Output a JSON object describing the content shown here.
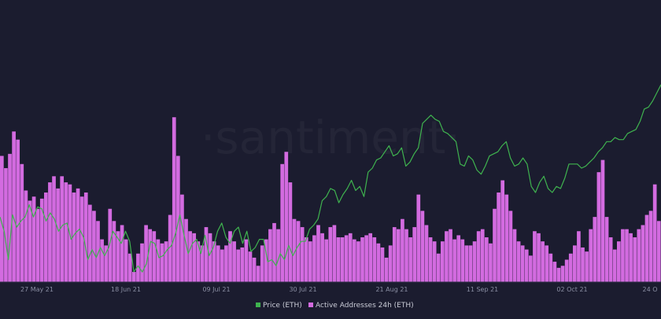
{
  "watermark": "·santiment·",
  "chart_data": {
    "type": "bar+line",
    "x_ticks": [
      "27 May 21",
      "18 Jun 21",
      "09 Jul 21",
      "30 Jul 21",
      "21 Aug 21",
      "11 Sep 21",
      "02 Oct 21",
      "24 O"
    ],
    "legend": [
      {
        "label": "Price (ETH)",
        "color": "#3fb34f"
      },
      {
        "label": "Active Addresses 24h (ETH)",
        "color": "#d36be0"
      }
    ],
    "series": [
      {
        "name": "Active Addresses 24h (ETH)",
        "kind": "bar",
        "color": "#d36be0",
        "relative_values": [
          0.62,
          0.56,
          0.63,
          0.74,
          0.7,
          0.58,
          0.45,
          0.4,
          0.42,
          0.36,
          0.41,
          0.44,
          0.49,
          0.52,
          0.46,
          0.52,
          0.49,
          0.48,
          0.44,
          0.46,
          0.42,
          0.44,
          0.38,
          0.35,
          0.3,
          0.21,
          0.18,
          0.36,
          0.3,
          0.25,
          0.28,
          0.21,
          0.14,
          0.05,
          0.14,
          0.19,
          0.28,
          0.26,
          0.25,
          0.21,
          0.19,
          0.2,
          0.33,
          0.81,
          0.62,
          0.43,
          0.31,
          0.25,
          0.24,
          0.2,
          0.18,
          0.27,
          0.24,
          0.2,
          0.18,
          0.16,
          0.18,
          0.25,
          0.2,
          0.16,
          0.17,
          0.21,
          0.15,
          0.12,
          0.08,
          0.18,
          0.21,
          0.26,
          0.29,
          0.26,
          0.58,
          0.64,
          0.49,
          0.31,
          0.3,
          0.27,
          0.22,
          0.2,
          0.23,
          0.28,
          0.24,
          0.21,
          0.27,
          0.28,
          0.22,
          0.22,
          0.23,
          0.24,
          0.21,
          0.2,
          0.22,
          0.23,
          0.24,
          0.22,
          0.19,
          0.17,
          0.12,
          0.18,
          0.27,
          0.26,
          0.31,
          0.26,
          0.22,
          0.27,
          0.43,
          0.35,
          0.28,
          0.22,
          0.2,
          0.14,
          0.2,
          0.25,
          0.26,
          0.21,
          0.23,
          0.21,
          0.18,
          0.18,
          0.2,
          0.25,
          0.26,
          0.22,
          0.19,
          0.36,
          0.44,
          0.5,
          0.43,
          0.35,
          0.26,
          0.2,
          0.18,
          0.16,
          0.13,
          0.25,
          0.24,
          0.2,
          0.18,
          0.14,
          0.1,
          0.07,
          0.08,
          0.11,
          0.14,
          0.18,
          0.25,
          0.17,
          0.15,
          0.26,
          0.32,
          0.54,
          0.6,
          0.32,
          0.22,
          0.16,
          0.2,
          0.26,
          0.26,
          0.24,
          0.22,
          0.26,
          0.28,
          0.33,
          0.35,
          0.48,
          0.3
        ],
        "value_range": [
          0,
          1
        ]
      },
      {
        "name": "Price (ETH)",
        "kind": "line",
        "color": "#3fb34f",
        "relative_values": [
          0.32,
          0.25,
          0.11,
          0.33,
          0.27,
          0.3,
          0.32,
          0.38,
          0.32,
          0.37,
          0.36,
          0.3,
          0.34,
          0.31,
          0.25,
          0.28,
          0.29,
          0.21,
          0.24,
          0.26,
          0.22,
          0.11,
          0.16,
          0.12,
          0.17,
          0.13,
          0.17,
          0.25,
          0.22,
          0.19,
          0.25,
          0.2,
          0.05,
          0.08,
          0.05,
          0.09,
          0.2,
          0.19,
          0.12,
          0.13,
          0.16,
          0.18,
          0.24,
          0.33,
          0.23,
          0.14,
          0.19,
          0.21,
          0.14,
          0.23,
          0.13,
          0.17,
          0.25,
          0.29,
          0.22,
          0.19,
          0.25,
          0.27,
          0.19,
          0.25,
          0.15,
          0.17,
          0.21,
          0.21,
          0.1,
          0.11,
          0.08,
          0.14,
          0.11,
          0.18,
          0.13,
          0.17,
          0.2,
          0.2,
          0.26,
          0.28,
          0.31,
          0.4,
          0.42,
          0.46,
          0.45,
          0.39,
          0.43,
          0.46,
          0.5,
          0.45,
          0.47,
          0.42,
          0.54,
          0.56,
          0.6,
          0.61,
          0.64,
          0.67,
          0.62,
          0.63,
          0.66,
          0.57,
          0.59,
          0.63,
          0.66,
          0.78,
          0.8,
          0.82,
          0.8,
          0.79,
          0.74,
          0.73,
          0.71,
          0.69,
          0.58,
          0.57,
          0.62,
          0.6,
          0.55,
          0.53,
          0.57,
          0.62,
          0.63,
          0.64,
          0.67,
          0.69,
          0.61,
          0.57,
          0.58,
          0.61,
          0.58,
          0.47,
          0.44,
          0.49,
          0.52,
          0.46,
          0.44,
          0.47,
          0.46,
          0.51,
          0.58,
          0.58,
          0.58,
          0.56,
          0.57,
          0.59,
          0.61,
          0.64,
          0.66,
          0.69,
          0.69,
          0.71,
          0.7,
          0.7,
          0.73,
          0.74,
          0.75,
          0.79,
          0.85,
          0.86,
          0.89,
          0.93,
          0.97
        ],
        "value_range": [
          0,
          1
        ]
      }
    ],
    "grid": false,
    "legend_position": "bottom-center"
  }
}
